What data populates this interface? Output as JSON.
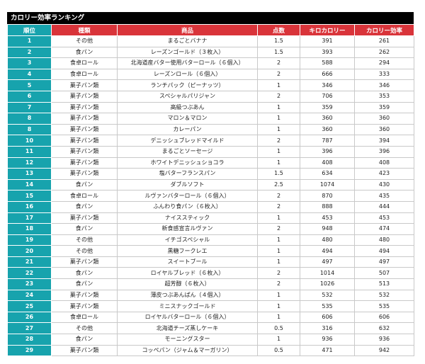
{
  "title": "カロリー効率ランキング",
  "columns": {
    "rank": "順位",
    "category": "種類",
    "product": "商品",
    "score": "点数",
    "kcal": "キロカロリー",
    "efficiency": "カロリー効率"
  },
  "colors": {
    "rank_header": "#17a3ad",
    "other_header": "#d9343a",
    "title_bg": "#000000"
  },
  "rows": [
    {
      "rank": "1",
      "category": "その他",
      "product": "まるごとバナナ",
      "score": "1.5",
      "kcal": "391",
      "efficiency": "261"
    },
    {
      "rank": "2",
      "category": "食パン",
      "product": "レーズンゴールド（３枚入）",
      "score": "1.5",
      "kcal": "393",
      "efficiency": "262"
    },
    {
      "rank": "3",
      "category": "食卓ロール",
      "product": "北海道産バター使用バターロール（６個入）",
      "score": "2",
      "kcal": "588",
      "efficiency": "294"
    },
    {
      "rank": "4",
      "category": "食卓ロール",
      "product": "レーズンロール（６個入）",
      "score": "2",
      "kcal": "666",
      "efficiency": "333"
    },
    {
      "rank": "5",
      "category": "菓子パン類",
      "product": "ランチパック（ピーナッツ）",
      "score": "1",
      "kcal": "346",
      "efficiency": "346"
    },
    {
      "rank": "6",
      "category": "菓子パン類",
      "product": "スペシャルパリジャン",
      "score": "2",
      "kcal": "706",
      "efficiency": "353"
    },
    {
      "rank": "7",
      "category": "菓子パン類",
      "product": "高級つぶあん",
      "score": "1",
      "kcal": "359",
      "efficiency": "359"
    },
    {
      "rank": "8",
      "category": "菓子パン類",
      "product": "マロン＆マロン",
      "score": "1",
      "kcal": "360",
      "efficiency": "360"
    },
    {
      "rank": "8",
      "category": "菓子パン類",
      "product": "カレーパン",
      "score": "1",
      "kcal": "360",
      "efficiency": "360"
    },
    {
      "rank": "10",
      "category": "菓子パン類",
      "product": "デニッシュブレッドマイルド",
      "score": "2",
      "kcal": "787",
      "efficiency": "394"
    },
    {
      "rank": "11",
      "category": "菓子パン類",
      "product": "まるごとソーセージ",
      "score": "1",
      "kcal": "396",
      "efficiency": "396"
    },
    {
      "rank": "12",
      "category": "菓子パン類",
      "product": "ホワイトデニッシュショコラ",
      "score": "1",
      "kcal": "408",
      "efficiency": "408"
    },
    {
      "rank": "13",
      "category": "菓子パン類",
      "product": "塩バターフランスパン",
      "score": "1.5",
      "kcal": "634",
      "efficiency": "423"
    },
    {
      "rank": "14",
      "category": "食パン",
      "product": "ダブルソフト",
      "score": "2.5",
      "kcal": "1074",
      "efficiency": "430"
    },
    {
      "rank": "15",
      "category": "食卓ロール",
      "product": "ルヴァンバターロール（６個入）",
      "score": "2",
      "kcal": "870",
      "efficiency": "435"
    },
    {
      "rank": "16",
      "category": "食パン",
      "product": "ふんわり食パン（６枚入）",
      "score": "2",
      "kcal": "888",
      "efficiency": "444"
    },
    {
      "rank": "17",
      "category": "菓子パン類",
      "product": "ナイススティック",
      "score": "1",
      "kcal": "453",
      "efficiency": "453"
    },
    {
      "rank": "18",
      "category": "食パン",
      "product": "新食感宣言ルヴァン",
      "score": "2",
      "kcal": "948",
      "efficiency": "474"
    },
    {
      "rank": "19",
      "category": "その他",
      "product": "イチゴスペシャル",
      "score": "1",
      "kcal": "480",
      "efficiency": "480"
    },
    {
      "rank": "20",
      "category": "その他",
      "product": "黒糖フークレエ",
      "score": "1",
      "kcal": "494",
      "efficiency": "494"
    },
    {
      "rank": "21",
      "category": "菓子パン類",
      "product": "スイートブール",
      "score": "1",
      "kcal": "497",
      "efficiency": "497"
    },
    {
      "rank": "22",
      "category": "食パン",
      "product": "ロイヤルブレッド（６枚入）",
      "score": "2",
      "kcal": "1014",
      "efficiency": "507"
    },
    {
      "rank": "23",
      "category": "食パン",
      "product": "超芳醇（６枚入）",
      "score": "2",
      "kcal": "1026",
      "efficiency": "513"
    },
    {
      "rank": "24",
      "category": "菓子パン類",
      "product": "薄皮つぶあんぱん（４個入）",
      "score": "1",
      "kcal": "532",
      "efficiency": "532"
    },
    {
      "rank": "25",
      "category": "菓子パン類",
      "product": "ミニスナックゴールド",
      "score": "1",
      "kcal": "535",
      "efficiency": "535"
    },
    {
      "rank": "26",
      "category": "食卓ロール",
      "product": "ロイヤルバターロール（６個入）",
      "score": "1",
      "kcal": "606",
      "efficiency": "606"
    },
    {
      "rank": "27",
      "category": "その他",
      "product": "北海道チーズ蒸しケーキ",
      "score": "0.5",
      "kcal": "316",
      "efficiency": "632"
    },
    {
      "rank": "28",
      "category": "食パン",
      "product": "モーニングスター",
      "score": "1",
      "kcal": "936",
      "efficiency": "936"
    },
    {
      "rank": "29",
      "category": "菓子パン類",
      "product": "コッペパン（ジャム＆マーガリン）",
      "score": "0.5",
      "kcal": "471",
      "efficiency": "942"
    }
  ]
}
